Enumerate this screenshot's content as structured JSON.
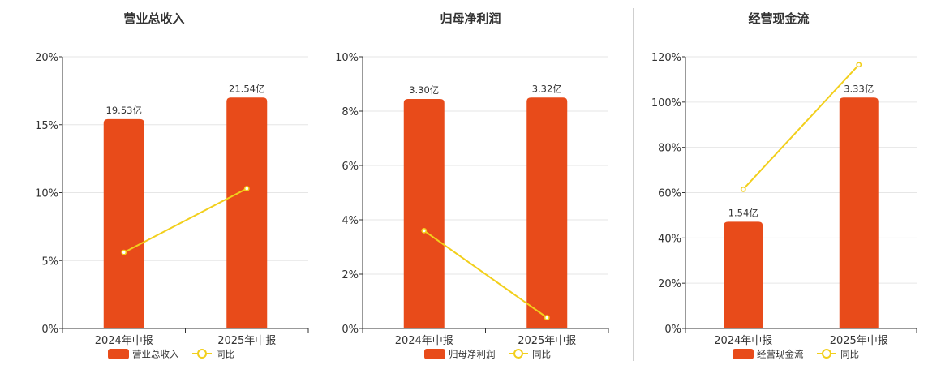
{
  "colors": {
    "bar": "#E84B1A",
    "line": "#F2CF1C",
    "grid": "#e6e6e6",
    "axis": "#333333"
  },
  "chart_data": [
    {
      "type": "bar",
      "title": "营业总收入",
      "categories": [
        "2024年中报",
        "2025年中报"
      ],
      "series": [
        {
          "name": "营业总收入",
          "type": "bar",
          "values": [
            19.53,
            21.54
          ],
          "labels": [
            "19.53亿",
            "21.54亿"
          ]
        },
        {
          "name": "同比",
          "type": "line",
          "values": [
            5.6,
            10.3
          ]
        }
      ],
      "ylim": [
        0,
        20
      ],
      "yticks": [
        "0%",
        "5%",
        "10%",
        "15%",
        "20%"
      ],
      "grid": true,
      "legend": "bottom"
    },
    {
      "type": "bar",
      "title": "归母净利润",
      "categories": [
        "2024年中报",
        "2025年中报"
      ],
      "series": [
        {
          "name": "归母净利润",
          "type": "bar",
          "values": [
            3.3,
            3.32
          ],
          "labels": [
            "3.30亿",
            "3.32亿"
          ]
        },
        {
          "name": "同比",
          "type": "line",
          "values": [
            3.6,
            0.4
          ]
        }
      ],
      "ylim": [
        0,
        10
      ],
      "yticks": [
        "0%",
        "2%",
        "4%",
        "6%",
        "8%",
        "10%"
      ],
      "grid": true,
      "legend": "bottom"
    },
    {
      "type": "bar",
      "title": "经营现金流",
      "categories": [
        "2024年中报",
        "2025年中报"
      ],
      "series": [
        {
          "name": "经营现金流",
          "type": "bar",
          "values": [
            1.54,
            3.33
          ],
          "labels": [
            "1.54亿",
            "3.33亿"
          ]
        },
        {
          "name": "同比",
          "type": "line",
          "values": [
            61.5,
            116.5
          ]
        }
      ],
      "ylim": [
        0,
        120
      ],
      "yticks": [
        "0%",
        "20%",
        "40%",
        "60%",
        "80%",
        "100%",
        "120%"
      ],
      "grid": true,
      "legend": "bottom"
    }
  ]
}
